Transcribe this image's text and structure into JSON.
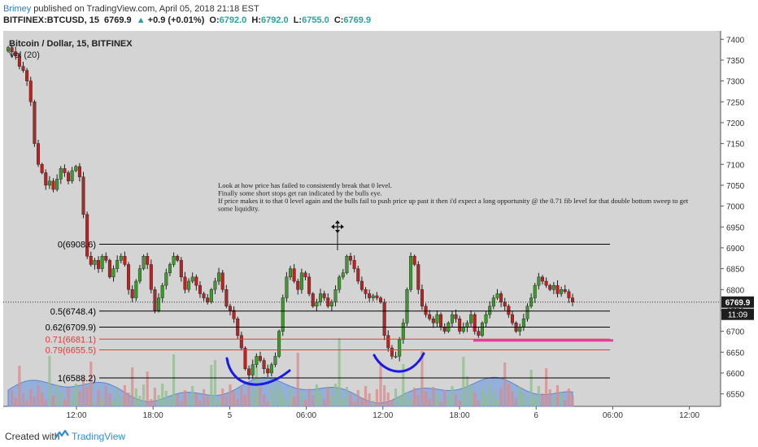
{
  "header": {
    "author": "Brimey",
    "published": "published on TradingView.com, April 05, 2018 21:18 EST",
    "symbol": "BITFINEX:BTCUSD, 15",
    "last": "6769.9",
    "change_arrow": "▲",
    "change": "+0.9 (+0.01%)",
    "o_label": "O:",
    "o": "6792.0",
    "h_label": "H:",
    "h": "6792.0",
    "l_label": "L:",
    "l": "6755.0",
    "c_label": "C:",
    "c": "6769.9"
  },
  "legend": {
    "title": "Bitcoin / Dollar, 15, BITFINEX",
    "vol": "Vol (20)"
  },
  "footer": {
    "created": "Created with",
    "brand": "TradingView"
  },
  "colors": {
    "bg": "#d4d4d4",
    "up": "#3c9a2c",
    "down": "#b72424",
    "fib": "#000000",
    "fib_red": "#e53935",
    "annotation_blue": "#1a1ae6",
    "magenta": "#e040a0",
    "vol_area": "#7da3dc",
    "author_link": "#2a7bd4"
  },
  "chart_data": {
    "type": "candlestick",
    "title": "Bitcoin / Dollar, 15, BITFINEX",
    "y_axis": {
      "ylim": [
        6520,
        7420
      ],
      "ticks": [
        6550,
        6600,
        6650,
        6700,
        6750,
        6800,
        6850,
        6900,
        6950,
        7000,
        7050,
        7100,
        7150,
        7200,
        7250,
        7300,
        7350,
        7400
      ],
      "position": "right"
    },
    "x_axis": {
      "ticks": [
        "12:00",
        "18:00",
        "5",
        "06:00",
        "12:00",
        "18:00",
        "6",
        "06:00",
        "12:00"
      ]
    },
    "last_price": "6769.9",
    "countdown": "11:09",
    "fib_levels": [
      {
        "label": "0(6908.6)",
        "value": 6908.6,
        "color": "#000000"
      },
      {
        "label": "0.5(6748.4)",
        "value": 6748.4,
        "color": "#000000"
      },
      {
        "label": "0.62(6709.9)",
        "value": 6709.9,
        "color": "#000000"
      },
      {
        "label": "0.71(6681.1)",
        "value": 6681.1,
        "color": "#e53935"
      },
      {
        "label": "0.79(6655.5)",
        "value": 6655.5,
        "color": "#e53935"
      },
      {
        "label": "1(6588.2)",
        "value": 6588.2,
        "color": "#000000"
      }
    ],
    "target_level": 6678,
    "annotation": {
      "lines": [
        "Look at how price has failed to consistently break that 0 level.",
        "Finally some short stops get ran indicated by the bulls eye.",
        "If price makes it to that 0 level again and the bulls fail to push price up past it then i'd expect a long opportunity @ the 0.71 fib level for that double bottom sweep to get",
        "some liquidity."
      ]
    },
    "closes": [
      7380,
      7370,
      7360,
      7335,
      7325,
      7300,
      7250,
      7150,
      7100,
      7080,
      7050,
      7060,
      7040,
      7065,
      7090,
      7080,
      7060,
      7085,
      7095,
      7070,
      6980,
      6880,
      6860,
      6870,
      6850,
      6880,
      6870,
      6830,
      6850,
      6870,
      6880,
      6860,
      6800,
      6780,
      6820,
      6850,
      6880,
      6860,
      6800,
      6750,
      6780,
      6810,
      6840,
      6860,
      6880,
      6870,
      6830,
      6800,
      6820,
      6830,
      6810,
      6790,
      6780,
      6770,
      6800,
      6820,
      6840,
      6800,
      6760,
      6750,
      6730,
      6690,
      6660,
      6610,
      6595,
      6620,
      6640,
      6630,
      6610,
      6600,
      6620,
      6640,
      6700,
      6780,
      6830,
      6850,
      6820,
      6800,
      6840,
      6830,
      6790,
      6760,
      6770,
      6790,
      6780,
      6760,
      6770,
      6800,
      6830,
      6840,
      6880,
      6870,
      6850,
      6820,
      6800,
      6790,
      6780,
      6785,
      6780,
      6770,
      6690,
      6660,
      6640,
      6640,
      6680,
      6720,
      6800,
      6880,
      6860,
      6800,
      6760,
      6740,
      6730,
      6720,
      6740,
      6710,
      6700,
      6720,
      6740,
      6730,
      6700,
      6710,
      6720,
      6740,
      6700,
      6690,
      6720,
      6740,
      6760,
      6780,
      6790,
      6770,
      6760,
      6740,
      6720,
      6700,
      6710,
      6730,
      6760,
      6780,
      6810,
      6830,
      6820,
      6810,
      6800,
      6810,
      6790,
      6800,
      6795,
      6780,
      6770
    ]
  }
}
